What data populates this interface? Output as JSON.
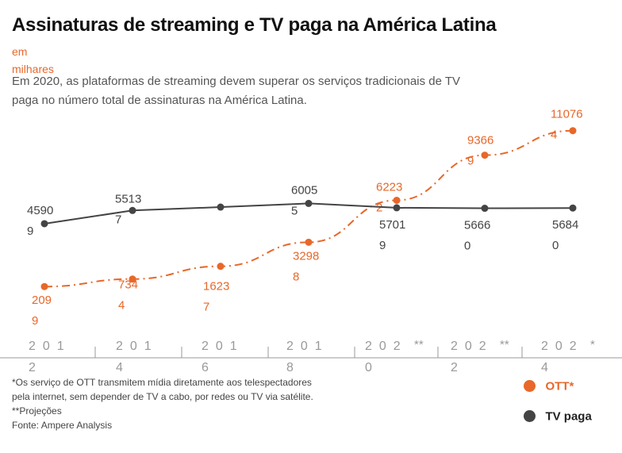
{
  "header": {
    "title": "Assinaturas de streaming e TV paga na América Latina",
    "unit": "em milhares",
    "subtitle": "Em 2020, as plataformas de streaming devem superar os serviços tradicionais de TV paga no número total de assinaturas na América Latina."
  },
  "colors": {
    "ott": "#e8672a",
    "tv": "#444444",
    "axis": "#999999"
  },
  "chart_data": {
    "type": "line",
    "x": [
      "2012",
      "2014",
      "2016",
      "2018",
      "2020",
      "2022",
      "2024"
    ],
    "x_tick_labels": [
      "2012",
      "2014",
      "2016",
      "2018",
      "2020**",
      "2022**",
      "2024*"
    ],
    "series": [
      {
        "name": "OTT*",
        "style": "dashed",
        "color": "#e8672a",
        "values": [
          2099,
          7344,
          16237,
          32988,
          62232,
          93669,
          110764
        ],
        "labels": [
          "2099",
          "7344",
          "16237",
          "32988",
          "62232",
          "93669",
          "110764"
        ]
      },
      {
        "name": "TV paga",
        "style": "solid",
        "color": "#444444",
        "values": [
          45909,
          55137,
          57500,
          60055,
          57019,
          56660,
          56840
        ],
        "labels": [
          "45909",
          "55137",
          "",
          "60055",
          "57019",
          "56660",
          "56840"
        ]
      }
    ],
    "ylim": [
      0,
      120000
    ],
    "grid": false,
    "legend": "bottom-right"
  },
  "notes": {
    "ott": "*Os serviço de OTT transmitem mídia diretamente aos telespectadores pela internet, sem depender de TV a cabo, por redes ou TV via satélite.",
    "proj": "**Projeções",
    "source": "Fonte: Ampere Analysis"
  },
  "legend": {
    "ott": "OTT*",
    "tv": "TV paga"
  }
}
